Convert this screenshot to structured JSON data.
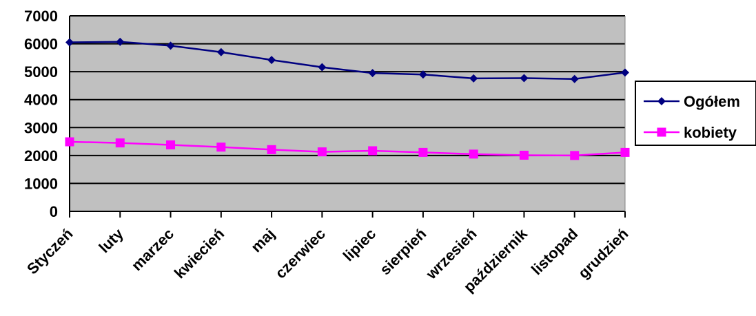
{
  "chart_data": {
    "type": "line",
    "categories": [
      "Styczeń",
      "luty",
      "marzec",
      "kwiecień",
      "maj",
      "czerwiec",
      "lipiec",
      "sierpień",
      "wrzesień",
      "październik",
      "listopad",
      "grudzień"
    ],
    "series": [
      {
        "name": "Ogółem",
        "values": [
          6050,
          6070,
          5930,
          5700,
          5420,
          5160,
          4950,
          4900,
          4760,
          4770,
          4740,
          4970
        ],
        "color": "#000080",
        "marker": "diamond"
      },
      {
        "name": "kobiety",
        "values": [
          2490,
          2450,
          2380,
          2300,
          2210,
          2130,
          2170,
          2110,
          2050,
          2010,
          2000,
          2110
        ],
        "color": "#ff00ff",
        "marker": "square"
      }
    ],
    "ylim": [
      0,
      7000
    ],
    "yticks": [
      0,
      1000,
      2000,
      3000,
      4000,
      5000,
      6000,
      7000
    ],
    "title": "",
    "xlabel": "",
    "ylabel": "",
    "grid": true,
    "legend_position": "right",
    "plot_background": "#c0c0c0"
  }
}
